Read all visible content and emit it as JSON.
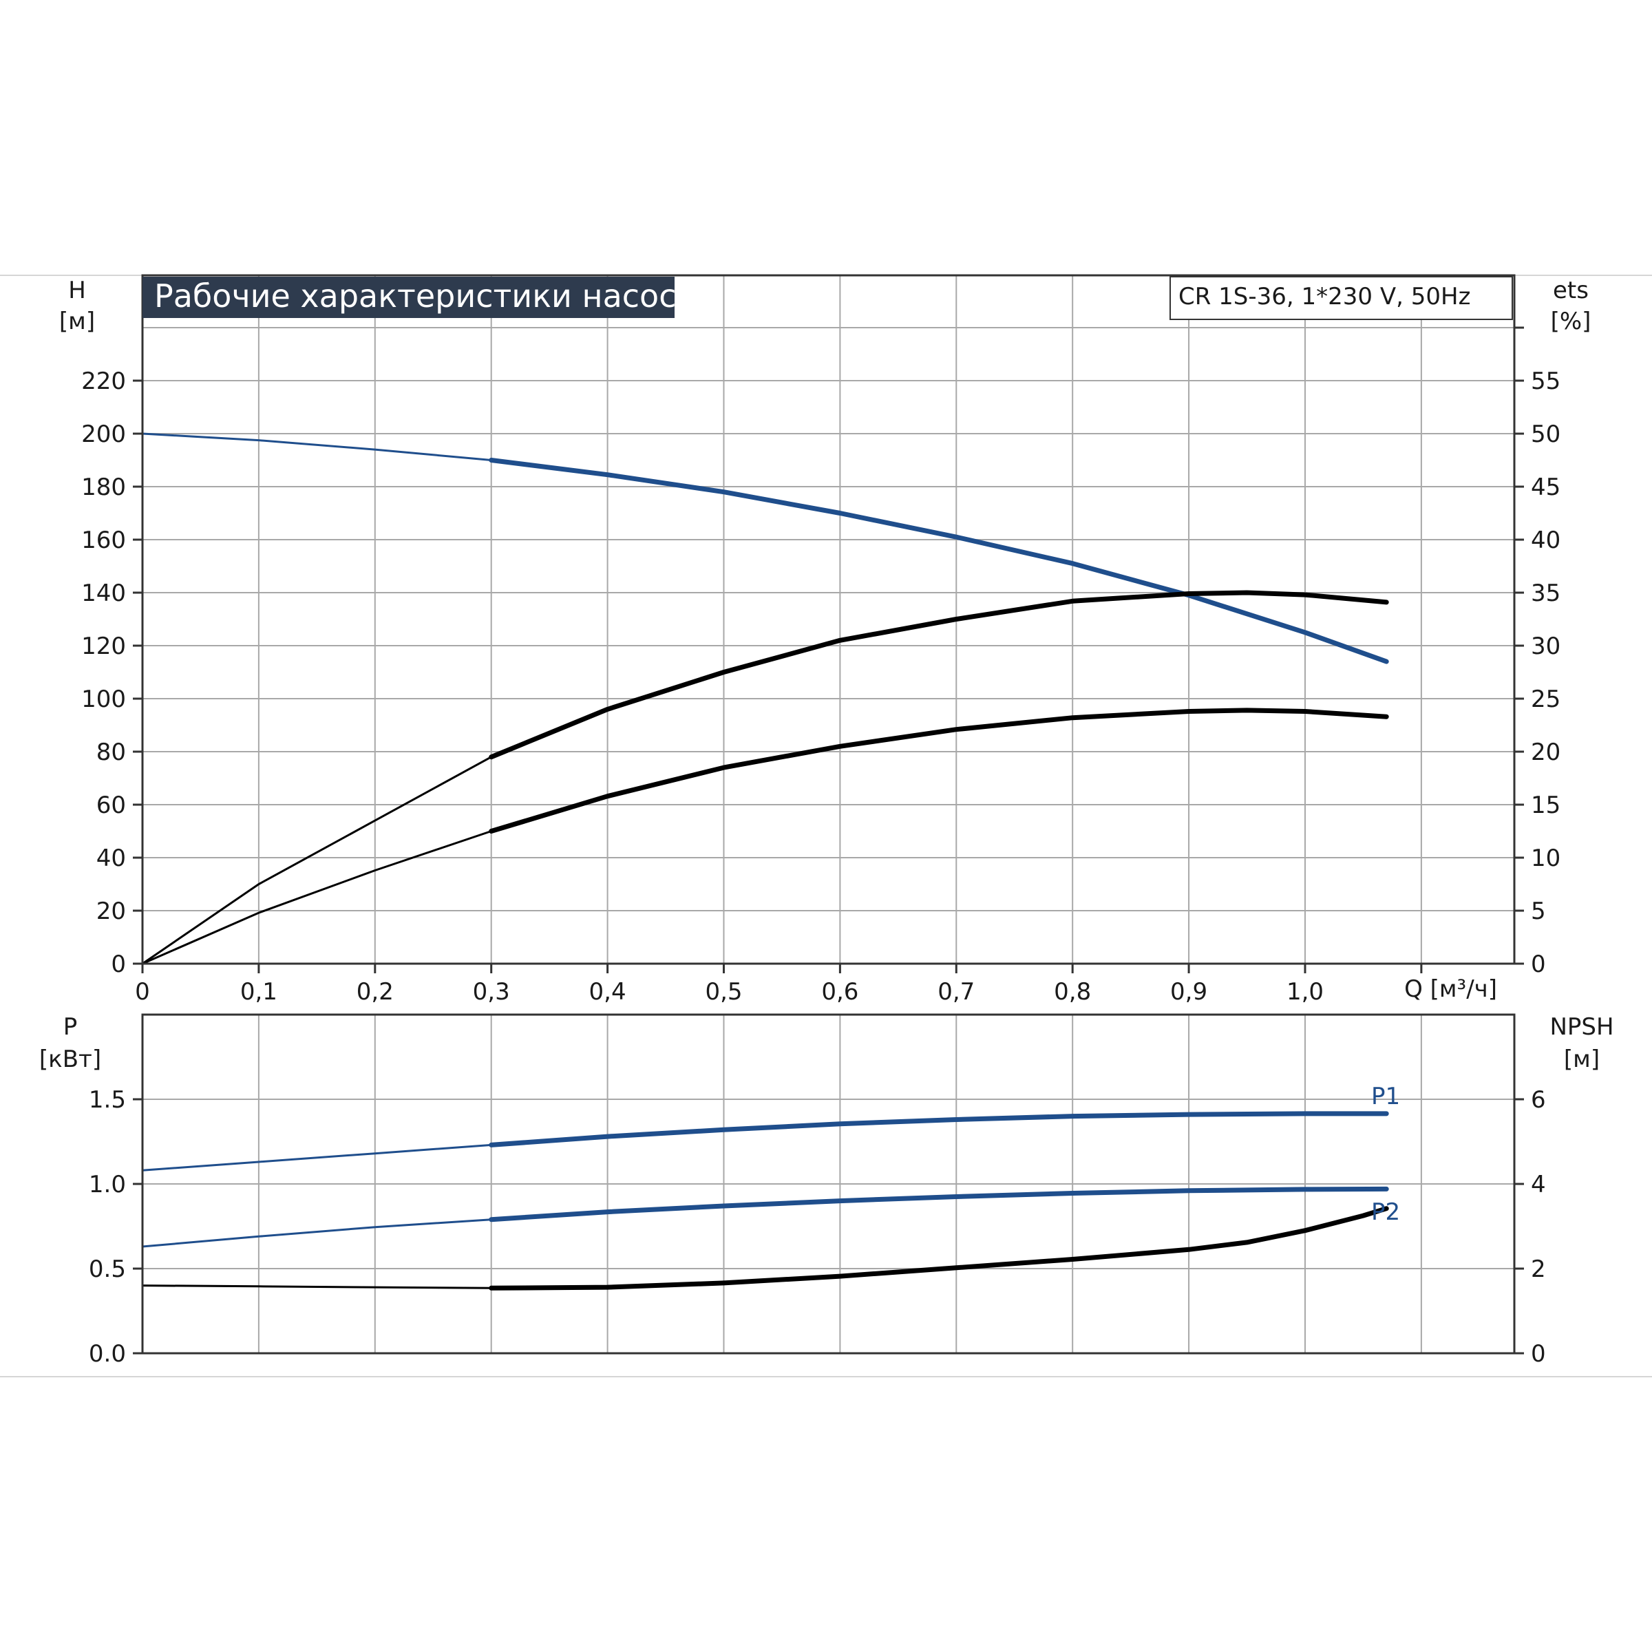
{
  "colors": {
    "blue_curve": "#1f4e8c",
    "black_curve": "#000000",
    "title_bg": "#2e3b4e"
  },
  "chart_data": [
    {
      "type": "line",
      "title": "Рабочие характеристики насоса",
      "model": "CR 1S-36, 1*230 V, 50Hz",
      "xlabel": "Q [м³/ч]",
      "x_ticks": [
        "0",
        "0,1",
        "0,2",
        "0,3",
        "0,4",
        "0,5",
        "0,6",
        "0,7",
        "0,8",
        "0,9",
        "1,0"
      ],
      "xlim": [
        0,
        1.18
      ],
      "left_axis": {
        "label_top": "H",
        "label_unit": "[м]",
        "ticks": [
          "0",
          "20",
          "40",
          "60",
          "80",
          "100",
          "120",
          "140",
          "160",
          "180",
          "200",
          "220"
        ],
        "ylim": [
          0,
          240
        ]
      },
      "right_axis": {
        "label_top": "ets",
        "label_unit": "[%]",
        "ticks": [
          "0",
          "5",
          "10",
          "15",
          "20",
          "25",
          "30",
          "35",
          "40",
          "45",
          "50",
          "55"
        ],
        "ylim": [
          0,
          60
        ]
      },
      "grid": true,
      "series": [
        {
          "axis": "left",
          "color": "#1f4e8c",
          "x": [
            0,
            0.1,
            0.2,
            0.3,
            0.4,
            0.5,
            0.6,
            0.7,
            0.8,
            0.9,
            1.0,
            1.07
          ],
          "y": [
            200,
            197.5,
            194,
            190,
            184.5,
            178,
            170,
            161,
            151,
            139,
            125,
            114
          ]
        },
        {
          "axis": "right",
          "color": "#000000",
          "x": [
            0,
            0.1,
            0.2,
            0.3,
            0.4,
            0.5,
            0.6,
            0.7,
            0.8,
            0.9,
            0.95,
            1.0,
            1.07
          ],
          "y": [
            0,
            7.5,
            13.5,
            19.5,
            24,
            27.5,
            30.5,
            32.5,
            34.2,
            34.9,
            35,
            34.8,
            34.1
          ]
        },
        {
          "axis": "right",
          "color": "#000000",
          "x": [
            0,
            0.1,
            0.2,
            0.3,
            0.4,
            0.5,
            0.6,
            0.7,
            0.8,
            0.9,
            0.95,
            1.0,
            1.07
          ],
          "y": [
            0,
            4.8,
            8.8,
            12.5,
            15.8,
            18.5,
            20.5,
            22.1,
            23.2,
            23.8,
            23.9,
            23.8,
            23.3
          ]
        }
      ]
    },
    {
      "type": "line",
      "xlim": [
        0,
        1.18
      ],
      "left_axis": {
        "label_top": "P",
        "label_unit": "[кВт]",
        "ticks": [
          "0.0",
          "0.5",
          "1.0",
          "1.5"
        ],
        "ylim": [
          0,
          2
        ]
      },
      "right_axis": {
        "label_top": "NPSH",
        "label_unit": "[м]",
        "ticks": [
          "0",
          "2",
          "4",
          "6"
        ],
        "ylim": [
          0,
          8
        ]
      },
      "grid": true,
      "series": [
        {
          "name": "P1",
          "axis": "left",
          "color": "#1f4e8c",
          "x": [
            0,
            0.1,
            0.2,
            0.3,
            0.4,
            0.5,
            0.6,
            0.7,
            0.8,
            0.9,
            1.0,
            1.07
          ],
          "y": [
            1.08,
            1.13,
            1.18,
            1.23,
            1.28,
            1.32,
            1.355,
            1.38,
            1.4,
            1.41,
            1.415,
            1.415
          ]
        },
        {
          "name": "P2",
          "axis": "left",
          "color": "#1f4e8c",
          "x": [
            0,
            0.1,
            0.2,
            0.3,
            0.4,
            0.5,
            0.6,
            0.7,
            0.8,
            0.9,
            1.0,
            1.07
          ],
          "y": [
            0.63,
            0.69,
            0.745,
            0.79,
            0.835,
            0.87,
            0.9,
            0.925,
            0.945,
            0.96,
            0.968,
            0.97
          ]
        },
        {
          "axis": "right",
          "color": "#000000",
          "x": [
            0,
            0.1,
            0.2,
            0.3,
            0.4,
            0.5,
            0.6,
            0.7,
            0.8,
            0.9,
            0.95,
            1.0,
            1.05,
            1.07
          ],
          "y": [
            1.6,
            1.58,
            1.56,
            1.54,
            1.56,
            1.66,
            1.82,
            2.02,
            2.22,
            2.45,
            2.62,
            2.9,
            3.25,
            3.42
          ]
        }
      ]
    }
  ]
}
